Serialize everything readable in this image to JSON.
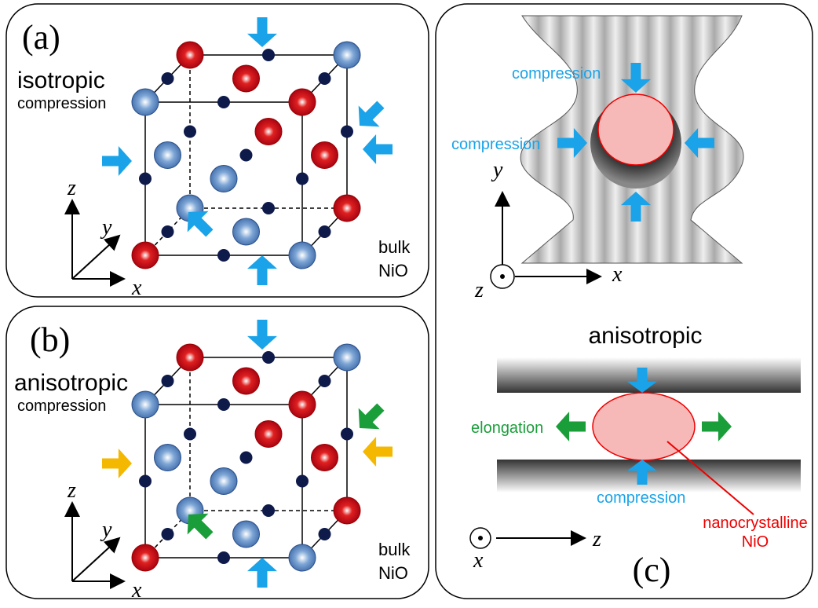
{
  "panels": [
    {
      "label": "(a)",
      "mode": "isotropic",
      "effect": "compression",
      "sample": [
        "bulk",
        "NiO"
      ],
      "axes": {
        "z": "z",
        "y": "y",
        "x": "x"
      }
    },
    {
      "label": "(b)",
      "mode": "anisotropic",
      "effect": "compression",
      "sample": [
        "bulk",
        "NiO"
      ],
      "axes": {
        "z": "z",
        "y": "y",
        "x": "x"
      }
    }
  ],
  "panel_c": {
    "label": "(c)",
    "top": {
      "compression_top": "compression",
      "compression_left": "compression",
      "axes": {
        "y": "y",
        "x": "x",
        "z": "z"
      }
    },
    "bottom": {
      "mode": "anisotropic",
      "elongation": "elongation",
      "compression": "compression",
      "material": [
        "nanocrystalline",
        "NiO"
      ],
      "axes": {
        "z": "z",
        "x": "x"
      }
    }
  }
}
